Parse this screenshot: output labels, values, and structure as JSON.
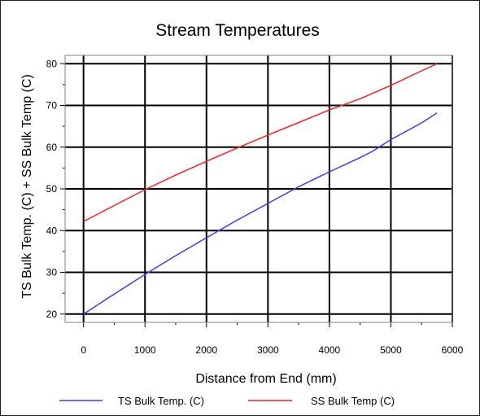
{
  "chart_data": {
    "type": "line",
    "title": "Stream Temperatures",
    "xlabel": "Distance from End (mm)",
    "ylabel": "TS Bulk Temp. (C) + SS Bulk Temp (C)",
    "xlim": [
      -300,
      6000
    ],
    "ylim": [
      18,
      82
    ],
    "xticks": [
      "0",
      "1000",
      "2000",
      "3000",
      "4000",
      "5000",
      "6000"
    ],
    "yticks": [
      "20",
      "30",
      "40",
      "50",
      "60",
      "70",
      "80"
    ],
    "grid": true,
    "legend_position": "bottom",
    "series": [
      {
        "name": "TS Bulk Temp. (C)",
        "color": "#3b3bff",
        "x": [
          0,
          500,
          1000,
          1500,
          2000,
          2500,
          3000,
          3500,
          4000,
          4500,
          4700,
          5000,
          5500,
          5750
        ],
        "y": [
          20,
          24.8,
          29.5,
          34,
          38.3,
          42.5,
          46.5,
          50.5,
          54.1,
          57.5,
          59,
          61.8,
          65.8,
          68.2
        ]
      },
      {
        "name": "SS Bulk Temp (C)",
        "color": "#ff2020",
        "x": [
          0,
          500,
          1000,
          1500,
          2000,
          2500,
          3000,
          3500,
          4000,
          4500,
          5000,
          5500,
          5750
        ],
        "y": [
          42.2,
          46,
          49.8,
          53.3,
          56.6,
          59.8,
          62.9,
          65.9,
          68.9,
          71.6,
          74.8,
          78.3,
          80
        ]
      }
    ]
  }
}
